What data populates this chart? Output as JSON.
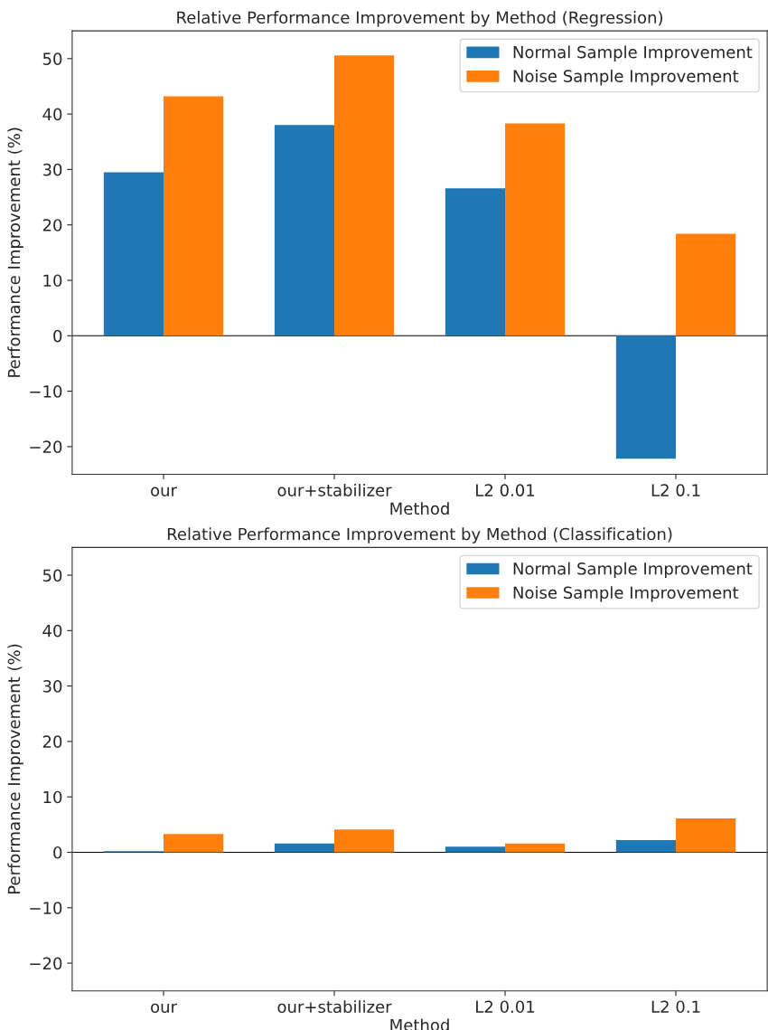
{
  "chart_data": [
    {
      "type": "bar",
      "title": "Relative Performance Improvement by Method (Regression)",
      "xlabel": "Method",
      "ylabel": "Performance Improvement (%)",
      "categories": [
        "our",
        "our+stabilizer",
        "L2 0.01",
        "L2 0.1"
      ],
      "series": [
        {
          "name": "Normal Sample Improvement",
          "color": "#1f77b4",
          "values": [
            29.5,
            38.0,
            26.6,
            -22.2
          ]
        },
        {
          "name": "Noise Sample Improvement",
          "color": "#ff7f0e",
          "values": [
            43.2,
            50.6,
            38.3,
            18.4
          ]
        }
      ],
      "ylim": [
        -25,
        55
      ],
      "yticks": [
        -20,
        -10,
        0,
        10,
        20,
        30,
        40,
        50
      ],
      "ref_lines": [
        {
          "axis": "y",
          "value": 0,
          "color": "#000000"
        }
      ],
      "legend": "top right",
      "grid": false
    },
    {
      "type": "bar",
      "title": "Relative Performance Improvement by Method (Classification)",
      "xlabel": "Method",
      "ylabel": "Performance Improvement (%)",
      "categories": [
        "our",
        "our+stabilizer",
        "L2 0.01",
        "L2 0.1"
      ],
      "series": [
        {
          "name": "Normal Sample Improvement",
          "color": "#1f77b4",
          "values": [
            0.2,
            1.6,
            1.0,
            2.2
          ]
        },
        {
          "name": "Noise Sample Improvement",
          "color": "#ff7f0e",
          "values": [
            3.3,
            4.1,
            1.6,
            6.1
          ]
        }
      ],
      "ylim": [
        -25,
        55
      ],
      "yticks": [
        -20,
        -10,
        0,
        10,
        20,
        30,
        40,
        50
      ],
      "ref_lines": [
        {
          "axis": "y",
          "value": 0,
          "color": "#000000"
        }
      ],
      "legend": "top right",
      "grid": false
    }
  ]
}
